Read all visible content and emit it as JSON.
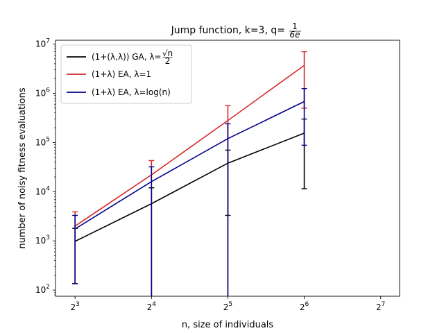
{
  "chart_data": {
    "type": "line",
    "title": "Jump function, k=3, q=",
    "title_fraction": {
      "numerator": "1",
      "denominator": "6e"
    },
    "xlabel": "n, size of individuals",
    "ylabel": "number of noisy fitness evaluations",
    "x_scale": "log2",
    "y_scale": "log10",
    "xlim": [
      6.7,
      152
    ],
    "ylim": [
      75,
      12000000
    ],
    "x_ticks": [
      8,
      16,
      32,
      64,
      128
    ],
    "x_tick_labels": [
      {
        "base": "2",
        "exp": "3"
      },
      {
        "base": "2",
        "exp": "4"
      },
      {
        "base": "2",
        "exp": "5"
      },
      {
        "base": "2",
        "exp": "6"
      },
      {
        "base": "2",
        "exp": "7"
      }
    ],
    "y_ticks": [
      100,
      1000,
      10000,
      100000,
      1000000,
      10000000
    ],
    "y_tick_labels": [
      {
        "base": "10",
        "exp": "2"
      },
      {
        "base": "10",
        "exp": "3"
      },
      {
        "base": "10",
        "exp": "4"
      },
      {
        "base": "10",
        "exp": "5"
      },
      {
        "base": "10",
        "exp": "6"
      },
      {
        "base": "10",
        "exp": "7"
      }
    ],
    "grid": false,
    "legend_position": "top-left",
    "series": [
      {
        "name": "(1+(λ,λ)) GA, λ=",
        "name_fraction": {
          "numerator": "√n",
          "denominator": "2"
        },
        "color": "#000000",
        "x": [
          8,
          16,
          32,
          64
        ],
        "y": [
          980,
          5700,
          38000,
          155000
        ],
        "err_low": [
          135,
          70,
          3300,
          11500
        ],
        "err_high": [
          1800,
          12000,
          70000,
          300000
        ]
      },
      {
        "name": "(1+λ) EA, λ=1",
        "color": "#d62728",
        "x": [
          8,
          16,
          32,
          64
        ],
        "y": [
          2000,
          22000,
          280000,
          3700000
        ],
        "err_low": [
          135,
          70,
          70,
          500000
        ],
        "err_high": [
          3900,
          43000,
          560000,
          7000000
        ]
      },
      {
        "name": "(1+λ) EA, λ=log(n)",
        "color": "#00008b",
        "x": [
          8,
          16,
          32,
          64
        ],
        "y": [
          1750,
          16000,
          120000,
          680000
        ],
        "err_low": [
          135,
          70,
          70,
          88000
        ],
        "err_high": [
          3300,
          32000,
          240000,
          1250000
        ]
      }
    ]
  }
}
